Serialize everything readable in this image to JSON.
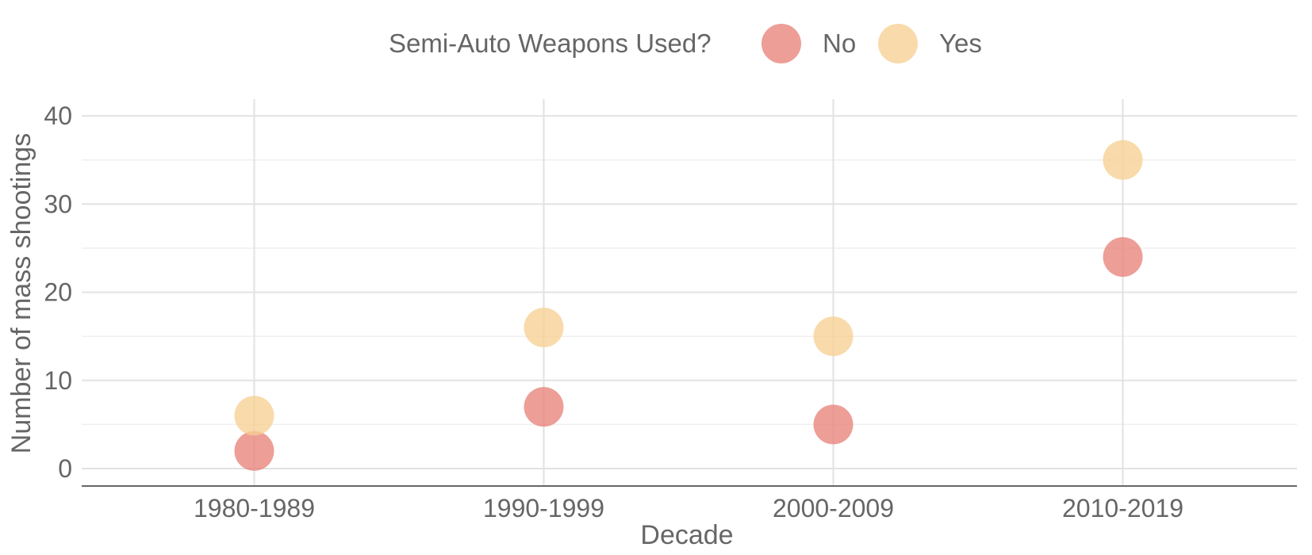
{
  "chart_data": {
    "type": "scatter",
    "title": "",
    "xlabel": "Decade",
    "ylabel": "Number of mass shootings",
    "categories": [
      "1980-1989",
      "1990-1999",
      "2000-2009",
      "2010-2019"
    ],
    "ylim": [
      -2,
      42
    ],
    "yticks": [
      0,
      10,
      20,
      30,
      40
    ],
    "grid": true,
    "legend": {
      "title": "Semi-Auto Weapons Used?",
      "position": "top"
    },
    "series": [
      {
        "name": "No",
        "color": "#e8837a",
        "values": [
          2,
          7,
          5,
          24
        ]
      },
      {
        "name": "Yes",
        "color": "#f7cf94",
        "values": [
          6,
          16,
          15,
          35
        ]
      }
    ]
  }
}
